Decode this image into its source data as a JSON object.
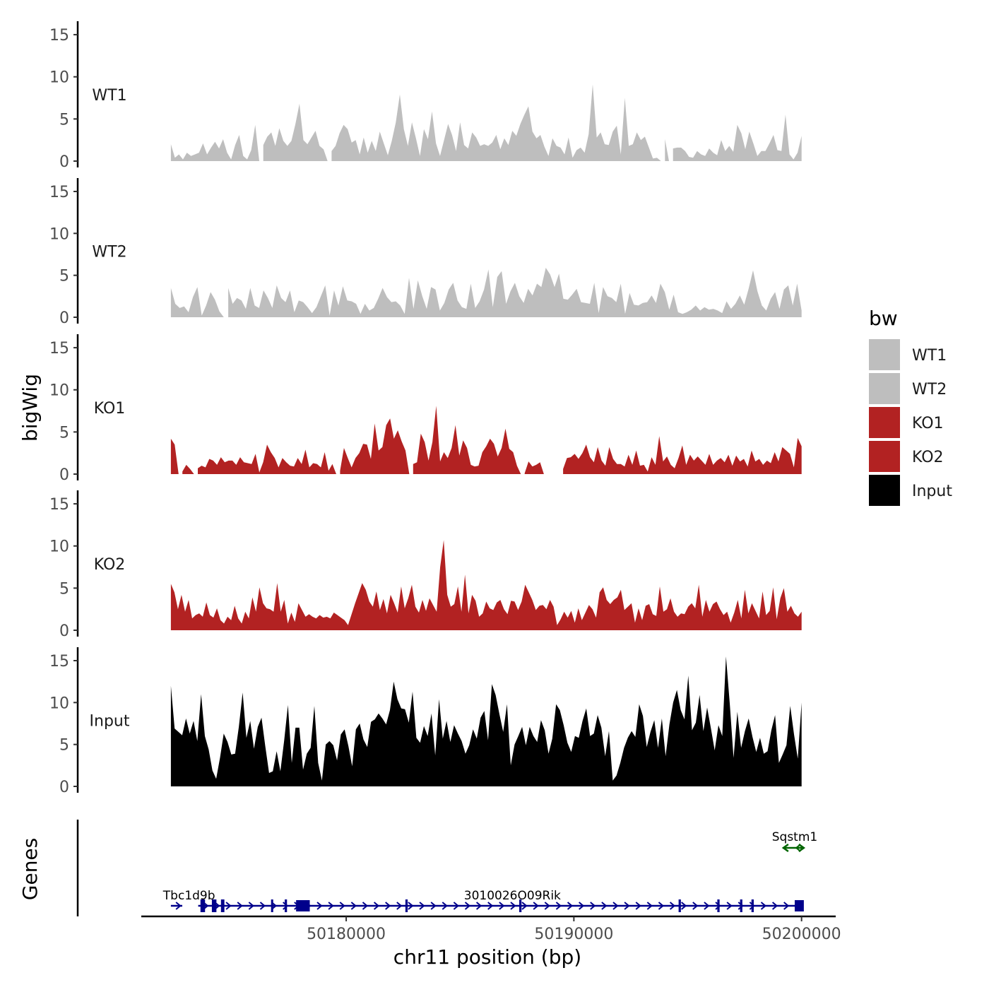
{
  "chart_data": {
    "type": "area",
    "chromosome": "chr11",
    "xlabel": "chr11 position (bp)",
    "ylabel": "bigWig",
    "genes_label": "Genes",
    "xlim": [
      50171000,
      50201500
    ],
    "data_range": [
      50172300,
      50200000
    ],
    "x_ticks": [
      50180000,
      50190000,
      50200000
    ],
    "x_tick_labels": [
      "50180000",
      "50190000",
      "50200000"
    ],
    "ylim": [
      0,
      16
    ],
    "y_ticks": [
      0,
      5,
      10,
      15
    ],
    "y_tick_labels": [
      "0",
      "5",
      "10",
      "15"
    ],
    "legend": {
      "title": "bw",
      "items": [
        {
          "label": "WT1",
          "color": "#bebebe"
        },
        {
          "label": "WT2",
          "color": "#bebebe"
        },
        {
          "label": "KO1",
          "color": "#b22222"
        },
        {
          "label": "KO2",
          "color": "#b22222"
        },
        {
          "label": "Input",
          "color": "#000000"
        }
      ]
    },
    "series": [
      {
        "name": "WT1",
        "color": "#bebebe",
        "values": [
          2.0,
          0.4,
          0.8,
          0.2,
          1.0,
          0.6,
          0.8,
          1.0,
          2.1,
          0.8,
          1.6,
          2.3,
          1.5,
          2.6,
          1.0,
          0.2,
          1.9,
          3.1,
          0.6,
          0.2,
          1.3,
          4.3,
          0,
          1.9,
          2.9,
          3.4,
          1.8,
          3.9,
          2.4,
          1.8,
          2.4,
          4.4,
          6.8,
          2.5,
          2.0,
          2.8,
          3.6,
          1.8,
          1.4,
          0,
          1.2,
          1.8,
          3.3,
          4.3,
          3.8,
          2.2,
          2.5,
          0.8,
          2.8,
          1.0,
          2.4,
          1.2,
          3.5,
          2.1,
          0.7,
          2.4,
          4.6,
          7.9,
          3.8,
          1.8,
          4.6,
          2.7,
          0.6,
          3.8,
          2.6,
          5.9,
          2.1,
          0.6,
          2.5,
          4.4,
          3.1,
          1.2,
          4.6,
          1.9,
          1.5,
          3.4,
          2.8,
          1.8,
          2.0,
          1.8,
          2.2,
          3.1,
          1.4,
          2.7,
          1.9,
          3.6,
          3.0,
          4.4,
          5.5,
          6.5,
          3.5,
          2.7,
          3.1,
          1.7,
          0.6,
          2.7,
          1.8,
          1.6,
          0.8,
          2.8,
          0.4,
          1.3,
          1.6,
          1.0,
          3.2,
          9.1,
          2.8,
          3.4,
          2.0,
          1.9,
          3.5,
          4.2,
          0.8,
          7.5,
          1.8,
          2.0,
          3.4,
          2.5,
          2.9,
          1.6,
          0.3,
          0.4,
          0,
          2.6,
          0,
          1.5,
          1.6,
          1.6,
          1.2,
          0.5,
          0.4,
          1.2,
          0.8,
          0.6,
          1.5,
          1.0,
          0.7,
          2.5,
          1.2,
          1.8,
          1.1,
          4.3,
          3.3,
          1.4,
          3.5,
          2.1,
          0.6,
          1.2,
          1.2,
          2.1,
          3.1,
          1.3,
          1.2,
          5.5,
          0.8,
          0.2,
          1.0,
          3.0
        ]
      },
      {
        "name": "WT2",
        "color": "#bebebe",
        "values": [
          3.5,
          1.6,
          1.1,
          1.3,
          0.6,
          2.4,
          3.6,
          0.2,
          1.4,
          3.0,
          2.1,
          0.7,
          0,
          3.5,
          1.6,
          2.3,
          2.0,
          1.0,
          3.5,
          1.4,
          1.1,
          3.2,
          2.3,
          1.1,
          3.8,
          2.3,
          1.8,
          3.2,
          0.6,
          2.0,
          1.8,
          1.2,
          0.5,
          1.2,
          2.5,
          3.8,
          0.2,
          3.2,
          1.4,
          3.7,
          2.0,
          1.9,
          1.6,
          0.4,
          1.6,
          0.8,
          1.1,
          2.2,
          3.5,
          2.4,
          1.8,
          1.9,
          1.4,
          0.4,
          4.7,
          1.0,
          4.4,
          2.5,
          1.0,
          3.6,
          3.3,
          0.8,
          1.7,
          3.3,
          4.1,
          2.0,
          1.2,
          1.0,
          4.0,
          1.1,
          1.9,
          3.3,
          5.7,
          1.2,
          4.8,
          5.5,
          1.6,
          3.1,
          4.1,
          2.5,
          1.7,
          3.4,
          2.6,
          4.0,
          3.6,
          5.9,
          5.1,
          3.6,
          5.2,
          2.2,
          2.1,
          2.7,
          3.4,
          1.8,
          1.7,
          1.6,
          4.1,
          0.5,
          3.6,
          2.5,
          2.3,
          1.8,
          4.0,
          0.4,
          2.9,
          1.5,
          1.4,
          1.7,
          1.8,
          2.6,
          1.7,
          4.0,
          3.0,
          0.9,
          2.7,
          0.6,
          0.4,
          0.6,
          0.9,
          1.4,
          0.8,
          1.2,
          0.9,
          1.0,
          0.8,
          0.5,
          1.9,
          1.0,
          1.6,
          2.6,
          1.5,
          3.4,
          5.6,
          3.1,
          1.4,
          0.8,
          2.2,
          3.0,
          1.0,
          3.3,
          3.8,
          1.4,
          4.0,
          0.8
        ]
      },
      {
        "name": "KO1",
        "color": "#b22222",
        "values": [
          4.2,
          3.5,
          0,
          0.3,
          1.1,
          0.6,
          0,
          0.7,
          1.0,
          0.8,
          1.8,
          1.6,
          1.1,
          2.0,
          1.4,
          1.6,
          1.6,
          1.1,
          2.0,
          1.4,
          1.3,
          1.2,
          2.4,
          0.2,
          1.4,
          3.5,
          2.6,
          1.9,
          0.8,
          1.9,
          1.4,
          1.0,
          0.9,
          1.9,
          1.2,
          2.9,
          0.8,
          1.3,
          1.2,
          0.8,
          2.6,
          0.4,
          1.2,
          0,
          0.4,
          3.1,
          1.9,
          0.8,
          1.9,
          2.5,
          3.6,
          3.5,
          1.8,
          6.0,
          2.8,
          3.2,
          5.8,
          6.6,
          4.2,
          5.2,
          3.9,
          2.8,
          0,
          1.2,
          1.4,
          4.8,
          3.8,
          1.6,
          3.8,
          8.1,
          1.5,
          2.6,
          1.9,
          3.1,
          5.8,
          2.2,
          4.0,
          3.1,
          1.1,
          0.9,
          1.0,
          2.6,
          3.3,
          4.2,
          3.6,
          2.1,
          3.1,
          5.4,
          3.0,
          2.6,
          1.0,
          0,
          0.1,
          1.5,
          0.9,
          1.1,
          1.4,
          0,
          0,
          0,
          0,
          0,
          0.6,
          1.9,
          2.0,
          2.4,
          1.8,
          2.5,
          3.5,
          2.0,
          1.4,
          3.2,
          1.6,
          1.0,
          3.2,
          1.8,
          1.2,
          1.2,
          0.9,
          2.3,
          1.1,
          2.8,
          1.0,
          1.1,
          0.3,
          2.0,
          1.1,
          4.5,
          1.5,
          2.1,
          1.1,
          0.7,
          1.9,
          3.4,
          1.1,
          2.3,
          1.6,
          2.1,
          1.6,
          1.1,
          2.4,
          1.1,
          1.6,
          1.9,
          1.4,
          2.3,
          1.0,
          2.2,
          1.5,
          1.8,
          0.9,
          2.8,
          1.5,
          1.8,
          1.1,
          1.6,
          1.3,
          2.6,
          1.5,
          3.2,
          2.8,
          2.4,
          0.8,
          4.3,
          3.3
        ]
      },
      {
        "name": "KO2",
        "color": "#b22222",
        "values": [
          5.5,
          4.5,
          2.5,
          4.2,
          2.2,
          3.6,
          1.4,
          1.8,
          2.0,
          1.6,
          3.3,
          1.8,
          1.5,
          2.6,
          1.2,
          0.8,
          1.6,
          1.2,
          2.9,
          1.4,
          0.8,
          2.2,
          1.4,
          3.9,
          2.2,
          5.1,
          3.2,
          2.6,
          2.5,
          2.2,
          5.6,
          2.2,
          3.6,
          0.8,
          2.1,
          1.0,
          3.2,
          2.4,
          1.6,
          1.9,
          1.6,
          1.4,
          1.8,
          1.5,
          1.6,
          1.4,
          2.1,
          1.8,
          1.5,
          1.2,
          0.6,
          1.9,
          3.2,
          4.4,
          5.6,
          4.8,
          3.4,
          2.8,
          4.6,
          2.4,
          3.7,
          2.0,
          4.2,
          3.2,
          2.1,
          5.2,
          2.6,
          3.8,
          5.4,
          2.8,
          2.1,
          3.6,
          2.3,
          3.8,
          3.0,
          2.2,
          7.5,
          10.7,
          4.2,
          2.8,
          3.1,
          5.2,
          2.2,
          6.6,
          2.0,
          4.2,
          3.5,
          1.6,
          2.0,
          3.4,
          2.6,
          2.4,
          3.3,
          3.6,
          2.5,
          1.9,
          3.5,
          3.4,
          2.4,
          3.4,
          5.4,
          4.5,
          3.6,
          2.4,
          2.9,
          3.0,
          2.5,
          3.6,
          2.8,
          0.6,
          1.3,
          2.2,
          1.5,
          2.3,
          0.9,
          2.6,
          1.2,
          2.1,
          3.0,
          2.5,
          1.5,
          4.5,
          5.1,
          3.6,
          3.1,
          3.6,
          3.9,
          4.8,
          2.4,
          2.8,
          3.2,
          0.9,
          2.6,
          1.2,
          2.9,
          3.1,
          1.9,
          1.7,
          5.2,
          2.2,
          2.5,
          3.8,
          2.2,
          1.6,
          2.0,
          1.9,
          2.8,
          3.2,
          2.6,
          5.4,
          1.6,
          3.6,
          2.2,
          3.1,
          3.4,
          2.5,
          1.8,
          2.2,
          0.9,
          2.1,
          3.6,
          1.4,
          4.8,
          2.0,
          3.2,
          2.3,
          1.4,
          4.6,
          1.8,
          2.3,
          5.1,
          1.3,
          3.8,
          5.0,
          2.2,
          2.9,
          2.0,
          1.6,
          2.2
        ]
      },
      {
        "name": "Input",
        "color": "#000000",
        "values": [
          12.0,
          6.9,
          6.5,
          6.1,
          8.1,
          6.3,
          7.8,
          5.4,
          11.0,
          6.0,
          4.4,
          1.9,
          0.9,
          3.4,
          6.3,
          5.3,
          3.8,
          3.9,
          7.1,
          11.2,
          5.8,
          7.8,
          4.5,
          7.1,
          8.2,
          4.8,
          1.6,
          1.8,
          4.2,
          1.8,
          5.5,
          9.7,
          2.8,
          7.0,
          7.0,
          2.0,
          3.9,
          4.6,
          9.6,
          2.8,
          0.7,
          5.0,
          5.4,
          4.9,
          3.1,
          6.2,
          6.8,
          4.8,
          2.4,
          6.8,
          7.5,
          5.6,
          4.7,
          7.7,
          8.0,
          8.7,
          8.1,
          7.4,
          9.1,
          12.5,
          10.4,
          9.3,
          9.2,
          7.6,
          11.3,
          5.8,
          5.2,
          7.2,
          6.0,
          8.7,
          3.7,
          10.4,
          5.7,
          7.8,
          5.3,
          7.3,
          6.3,
          5.4,
          3.9,
          4.9,
          6.8,
          5.7,
          8.2,
          9.0,
          5.5,
          12.2,
          10.9,
          8.6,
          6.5,
          9.8,
          2.5,
          5.0,
          6.0,
          7.1,
          4.9,
          7.1,
          6.0,
          5.3,
          7.9,
          6.7,
          3.9,
          5.7,
          9.8,
          9.1,
          7.3,
          5.2,
          4.1,
          6.0,
          5.8,
          7.8,
          9.3,
          6.0,
          6.3,
          8.5,
          7.0,
          3.6,
          6.6,
          0.7,
          1.3,
          2.8,
          4.6,
          5.8,
          6.6,
          5.9,
          9.8,
          8.4,
          4.7,
          6.5,
          7.9,
          4.6,
          8.1,
          3.6,
          7.4,
          10.0,
          11.5,
          9.1,
          8.0,
          13.2,
          6.7,
          7.6,
          10.9,
          6.6,
          9.4,
          6.9,
          4.3,
          7.3,
          6.0,
          15.5,
          9.8,
          3.4,
          8.9,
          4.6,
          6.6,
          8.1,
          5.9,
          4.1,
          5.8,
          3.9,
          4.2,
          6.7,
          8.5,
          2.8,
          3.8,
          4.9,
          9.6,
          6.2,
          3.3,
          10.0
        ]
      }
    ],
    "genes": [
      {
        "name": "Tbc1d9b",
        "start": 50172300,
        "end": 50172800,
        "strand": "+",
        "color": "#00008b",
        "exons": [],
        "label_x": 50173100,
        "row": 1
      },
      {
        "name": "3010026O09Rik",
        "start": 50173500,
        "end": 50200000,
        "strand": "+",
        "color": "#00008b",
        "exons": [
          [
            50173600,
            50173800
          ],
          [
            50174100,
            50174300
          ],
          [
            50174500,
            50174650
          ],
          [
            50176700,
            50176760
          ],
          [
            50177300,
            50177400
          ],
          [
            50177800,
            50178400
          ],
          [
            50182600,
            50182700
          ],
          [
            50187600,
            50187700
          ],
          [
            50194600,
            50194700
          ],
          [
            50196300,
            50196400
          ],
          [
            50197300,
            50197400
          ],
          [
            50197800,
            50197900
          ],
          [
            50199700,
            50200100
          ]
        ],
        "label_x": 50187300,
        "row": 1
      },
      {
        "name": "Sqstm1",
        "start": 50199200,
        "end": 50200100,
        "strand": "-",
        "color": "#006400",
        "exons": [],
        "label_x": 50199700,
        "row": 2
      }
    ]
  }
}
